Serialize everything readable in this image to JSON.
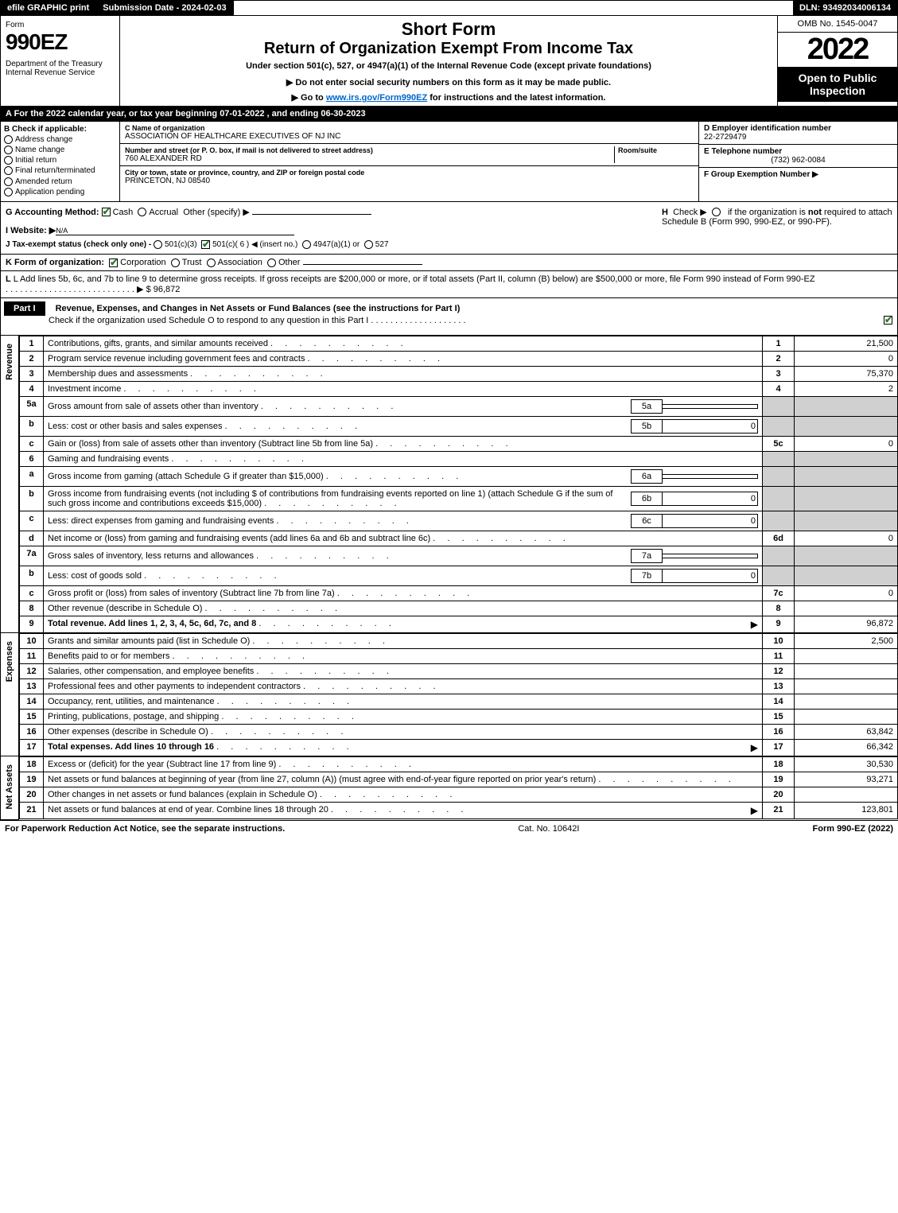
{
  "topbar": {
    "efile": "efile GRAPHIC print",
    "subdate_label": "Submission Date - 2024-02-03",
    "dln": "DLN: 93492034006134"
  },
  "header": {
    "form_word": "Form",
    "form_num": "990EZ",
    "dept": "Department of the Treasury\nInternal Revenue Service",
    "short": "Short Form",
    "title": "Return of Organization Exempt From Income Tax",
    "subtitle": "Under section 501(c), 527, or 4947(a)(1) of the Internal Revenue Code (except private foundations)",
    "note1": "▶ Do not enter social security numbers on this form as it may be made public.",
    "note2_pre": "▶ Go to ",
    "note2_link": "www.irs.gov/Form990EZ",
    "note2_post": " for instructions and the latest information.",
    "omb": "OMB No. 1545-0047",
    "year": "2022",
    "open": "Open to Public Inspection"
  },
  "row_a": "A  For the 2022 calendar year, or tax year beginning 07-01-2022 , and ending 06-30-2023",
  "section_b": {
    "hdr": "B  Check if applicable:",
    "items": [
      "Address change",
      "Name change",
      "Initial return",
      "Final return/terminated",
      "Amended return",
      "Application pending"
    ]
  },
  "section_c": {
    "name_lbl": "C Name of organization",
    "name": "ASSOCIATION OF HEALTHCARE EXECUTIVES OF NJ INC",
    "street_lbl": "Number and street (or P. O. box, if mail is not delivered to street address)",
    "room_lbl": "Room/suite",
    "street": "760 ALEXANDER RD",
    "city_lbl": "City or town, state or province, country, and ZIP or foreign postal code",
    "city": "PRINCETON, NJ  08540"
  },
  "section_def": {
    "d_lbl": "D Employer identification number",
    "d_val": "22-2729479",
    "e_lbl": "E Telephone number",
    "e_val": "(732) 962-0084",
    "f_lbl": "F Group Exemption Number  ▶"
  },
  "section_g": {
    "g_lbl": "G Accounting Method:",
    "g_cash": "Cash",
    "g_accrual": "Accrual",
    "g_other": "Other (specify) ▶",
    "i_lbl": "I Website: ▶",
    "i_val": "N/A",
    "j_lbl": "J Tax-exempt status (check only one) - ",
    "j_opts": [
      "501(c)(3)",
      "501(c)( 6 ) ◀ (insert no.)",
      "4947(a)(1) or",
      "527"
    ],
    "h_text": "H  Check ▶      if the organization is not required to attach Schedule B (Form 990, 990-EZ, or 990-PF)."
  },
  "line_k": {
    "lbl": "K Form of organization:",
    "opts": [
      "Corporation",
      "Trust",
      "Association",
      "Other"
    ]
  },
  "line_l": "L Add lines 5b, 6c, and 7b to line 9 to determine gross receipts. If gross receipts are $200,000 or more, or if total assets (Part II, column (B) below) are $500,000 or more, file Form 990 instead of Form 990-EZ",
  "line_l_amt": "▶ $ 96,872",
  "part1": {
    "label": "Part I",
    "title": "Revenue, Expenses, and Changes in Net Assets or Fund Balances (see the instructions for Part I)",
    "sub": "Check if the organization used Schedule O to respond to any question in this Part I"
  },
  "revenue_label": "Revenue",
  "expenses_label": "Expenses",
  "netassets_label": "Net Assets",
  "rows": [
    {
      "n": "1",
      "desc": "Contributions, gifts, grants, and similar amounts received",
      "ln": "1",
      "amt": "21,500"
    },
    {
      "n": "2",
      "desc": "Program service revenue including government fees and contracts",
      "ln": "2",
      "amt": "0"
    },
    {
      "n": "3",
      "desc": "Membership dues and assessments",
      "ln": "3",
      "amt": "75,370"
    },
    {
      "n": "4",
      "desc": "Investment income",
      "ln": "4",
      "amt": "2"
    },
    {
      "n": "5a",
      "desc": "Gross amount from sale of assets other than inventory",
      "sub": "5a",
      "subval": ""
    },
    {
      "n": "b",
      "desc": "Less: cost or other basis and sales expenses",
      "sub": "5b",
      "subval": "0"
    },
    {
      "n": "c",
      "desc": "Gain or (loss) from sale of assets other than inventory (Subtract line 5b from line 5a)",
      "ln": "5c",
      "amt": "0"
    },
    {
      "n": "6",
      "desc": "Gaming and fundraising events"
    },
    {
      "n": "a",
      "desc": "Gross income from gaming (attach Schedule G if greater than $15,000)",
      "sub": "6a",
      "subval": ""
    },
    {
      "n": "b",
      "desc": "Gross income from fundraising events (not including $                    of contributions from fundraising events reported on line 1) (attach Schedule G if the sum of such gross income and contributions exceeds $15,000)",
      "sub": "6b",
      "subval": "0"
    },
    {
      "n": "c",
      "desc": "Less: direct expenses from gaming and fundraising events",
      "sub": "6c",
      "subval": "0"
    },
    {
      "n": "d",
      "desc": "Net income or (loss) from gaming and fundraising events (add lines 6a and 6b and subtract line 6c)",
      "ln": "6d",
      "amt": "0"
    },
    {
      "n": "7a",
      "desc": "Gross sales of inventory, less returns and allowances",
      "sub": "7a",
      "subval": ""
    },
    {
      "n": "b",
      "desc": "Less: cost of goods sold",
      "sub": "7b",
      "subval": "0"
    },
    {
      "n": "c",
      "desc": "Gross profit or (loss) from sales of inventory (Subtract line 7b from line 7a)",
      "ln": "7c",
      "amt": "0"
    },
    {
      "n": "8",
      "desc": "Other revenue (describe in Schedule O)",
      "ln": "8",
      "amt": ""
    },
    {
      "n": "9",
      "desc": "Total revenue. Add lines 1, 2, 3, 4, 5c, 6d, 7c, and 8",
      "ln": "9",
      "amt": "96,872",
      "bold": true,
      "arrow": true
    }
  ],
  "exp_rows": [
    {
      "n": "10",
      "desc": "Grants and similar amounts paid (list in Schedule O)",
      "ln": "10",
      "amt": "2,500"
    },
    {
      "n": "11",
      "desc": "Benefits paid to or for members",
      "ln": "11",
      "amt": ""
    },
    {
      "n": "12",
      "desc": "Salaries, other compensation, and employee benefits",
      "ln": "12",
      "amt": ""
    },
    {
      "n": "13",
      "desc": "Professional fees and other payments to independent contractors",
      "ln": "13",
      "amt": ""
    },
    {
      "n": "14",
      "desc": "Occupancy, rent, utilities, and maintenance",
      "ln": "14",
      "amt": ""
    },
    {
      "n": "15",
      "desc": "Printing, publications, postage, and shipping",
      "ln": "15",
      "amt": ""
    },
    {
      "n": "16",
      "desc": "Other expenses (describe in Schedule O)",
      "ln": "16",
      "amt": "63,842"
    },
    {
      "n": "17",
      "desc": "Total expenses. Add lines 10 through 16",
      "ln": "17",
      "amt": "66,342",
      "bold": true,
      "arrow": true
    }
  ],
  "net_rows": [
    {
      "n": "18",
      "desc": "Excess or (deficit) for the year (Subtract line 17 from line 9)",
      "ln": "18",
      "amt": "30,530"
    },
    {
      "n": "19",
      "desc": "Net assets or fund balances at beginning of year (from line 27, column (A)) (must agree with end-of-year figure reported on prior year's return)",
      "ln": "19",
      "amt": "93,271"
    },
    {
      "n": "20",
      "desc": "Other changes in net assets or fund balances (explain in Schedule O)",
      "ln": "20",
      "amt": ""
    },
    {
      "n": "21",
      "desc": "Net assets or fund balances at end of year. Combine lines 18 through 20",
      "ln": "21",
      "amt": "123,801",
      "arrow": true
    }
  ],
  "footer": {
    "left": "For Paperwork Reduction Act Notice, see the separate instructions.",
    "mid": "Cat. No. 10642I",
    "right": "Form 990-EZ (2022)"
  }
}
